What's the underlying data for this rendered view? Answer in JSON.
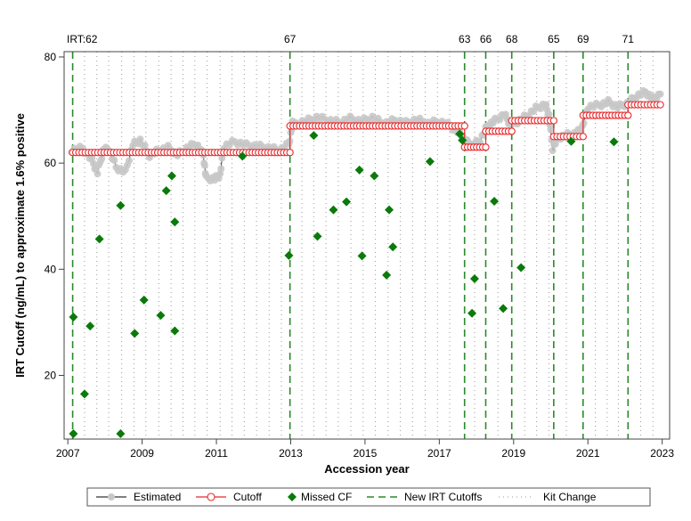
{
  "chart_data": {
    "type": "scatter",
    "xlabel": "Accession year",
    "ylabel": "IRT Cutoff (ng/mL) to approximate 1.6% positive",
    "xlim": [
      2006.9,
      2023.2
    ],
    "ylim": [
      8,
      81
    ],
    "x_ticks": [
      2007,
      2009,
      2011,
      2013,
      2015,
      2017,
      2019,
      2021,
      2023
    ],
    "y_ticks": [
      20,
      40,
      60,
      80
    ],
    "colors": {
      "estimated_line": "#000000",
      "estimated_marker": "#c8c8c8",
      "cutoff": "#e8282b",
      "missed": "#0a7a0a",
      "new_cutoff_line": "#2a8a2a",
      "kit_change": "#9a9a9a"
    },
    "new_irt_cutoffs": [
      {
        "x": 2007.13,
        "label": "IRT:62"
      },
      {
        "x": 2012.98,
        "label": "67"
      },
      {
        "x": 2017.68,
        "label": "63"
      },
      {
        "x": 2018.25,
        "label": "66"
      },
      {
        "x": 2018.95,
        "label": "68"
      },
      {
        "x": 2020.08,
        "label": "65"
      },
      {
        "x": 2020.87,
        "label": "69"
      },
      {
        "x": 2022.08,
        "label": "71"
      }
    ],
    "kit_changes": [
      2007.45,
      2007.78,
      2008.1,
      2008.45,
      2008.78,
      2009.1,
      2009.45,
      2009.78,
      2010.1,
      2010.42,
      2010.75,
      2011.1,
      2011.42,
      2011.75,
      2012.08,
      2012.42,
      2012.75,
      2013.3,
      2013.62,
      2013.95,
      2014.28,
      2014.62,
      2014.95,
      2015.28,
      2015.62,
      2015.95,
      2016.28,
      2016.62,
      2016.95,
      2017.28,
      2017.95,
      2018.58,
      2019.3,
      2019.62,
      2019.95,
      2020.42,
      2021.2,
      2021.52,
      2021.82,
      2022.42,
      2022.75
    ],
    "cutoff_segments": [
      {
        "x0": 2007.13,
        "x1": 2012.98,
        "y": 62
      },
      {
        "x0": 2012.98,
        "x1": 2017.68,
        "y": 67
      },
      {
        "x0": 2017.68,
        "x1": 2018.25,
        "y": 63
      },
      {
        "x0": 2018.25,
        "x1": 2018.95,
        "y": 66
      },
      {
        "x0": 2018.95,
        "x1": 2020.08,
        "y": 68
      },
      {
        "x0": 2020.08,
        "x1": 2020.87,
        "y": 65
      },
      {
        "x0": 2020.87,
        "x1": 2022.08,
        "y": 69
      },
      {
        "x0": 2022.08,
        "x1": 2022.95,
        "y": 71
      }
    ],
    "estimated_anchors": [
      [
        2007.1,
        62.5
      ],
      [
        2007.4,
        62.8
      ],
      [
        2007.65,
        60.5
      ],
      [
        2007.8,
        58.2
      ],
      [
        2007.95,
        62.3
      ],
      [
        2008.1,
        62.8
      ],
      [
        2008.3,
        59.2
      ],
      [
        2008.55,
        58.3
      ],
      [
        2008.75,
        63.5
      ],
      [
        2008.95,
        64.3
      ],
      [
        2009.2,
        61.5
      ],
      [
        2009.45,
        62.4
      ],
      [
        2009.7,
        62.9
      ],
      [
        2009.95,
        61.6
      ],
      [
        2010.2,
        62.8
      ],
      [
        2010.45,
        63.7
      ],
      [
        2010.65,
        61.5
      ],
      [
        2010.72,
        57.2
      ],
      [
        2010.95,
        57.0
      ],
      [
        2011.1,
        57.8
      ],
      [
        2011.2,
        63.2
      ],
      [
        2011.5,
        64.0
      ],
      [
        2011.8,
        63.4
      ],
      [
        2012.1,
        63.2
      ],
      [
        2012.4,
        62.9
      ],
      [
        2012.7,
        62.4
      ],
      [
        2012.95,
        63.6
      ],
      [
        2013.05,
        67.5
      ],
      [
        2013.4,
        67.9
      ],
      [
        2013.7,
        68.6
      ],
      [
        2014.0,
        68.1
      ],
      [
        2014.3,
        67.7
      ],
      [
        2014.6,
        68.4
      ],
      [
        2014.9,
        67.9
      ],
      [
        2015.2,
        68.6
      ],
      [
        2015.5,
        67.4
      ],
      [
        2015.8,
        68.1
      ],
      [
        2016.1,
        67.6
      ],
      [
        2016.4,
        68.2
      ],
      [
        2016.7,
        67.5
      ],
      [
        2017.0,
        67.9
      ],
      [
        2017.3,
        67.0
      ],
      [
        2017.55,
        65.6
      ],
      [
        2017.7,
        64.1
      ],
      [
        2017.9,
        63.4
      ],
      [
        2018.1,
        64.3
      ],
      [
        2018.3,
        67.1
      ],
      [
        2018.5,
        68.0
      ],
      [
        2018.75,
        69.2
      ],
      [
        2018.9,
        67.4
      ],
      [
        2019.1,
        67.8
      ],
      [
        2019.35,
        68.9
      ],
      [
        2019.6,
        70.3
      ],
      [
        2019.85,
        71.1
      ],
      [
        2019.95,
        69.0
      ],
      [
        2020.05,
        62.8
      ],
      [
        2020.2,
        64.8
      ],
      [
        2020.45,
        65.3
      ],
      [
        2020.7,
        65.6
      ],
      [
        2020.85,
        66.8
      ],
      [
        2021.0,
        70.6
      ],
      [
        2021.3,
        70.9
      ],
      [
        2021.55,
        71.5
      ],
      [
        2021.8,
        70.6
      ],
      [
        2022.05,
        71.2
      ],
      [
        2022.3,
        72.6
      ],
      [
        2022.55,
        73.4
      ],
      [
        2022.75,
        72.1
      ],
      [
        2022.95,
        73.0
      ]
    ],
    "missed_cf": [
      [
        2007.15,
        31
      ],
      [
        2007.15,
        9
      ],
      [
        2007.45,
        16.5
      ],
      [
        2007.6,
        29.3
      ],
      [
        2007.85,
        45.7
      ],
      [
        2008.42,
        52
      ],
      [
        2008.42,
        9
      ],
      [
        2008.8,
        27.9
      ],
      [
        2009.05,
        34.2
      ],
      [
        2009.5,
        31.3
      ],
      [
        2009.65,
        54.8
      ],
      [
        2009.8,
        57.6
      ],
      [
        2009.88,
        28.4
      ],
      [
        2009.88,
        48.9
      ],
      [
        2011.7,
        61.3
      ],
      [
        2012.95,
        42.6
      ],
      [
        2013.62,
        65.2
      ],
      [
        2013.72,
        46.2
      ],
      [
        2014.15,
        51.2
      ],
      [
        2014.5,
        52.7
      ],
      [
        2014.85,
        58.7
      ],
      [
        2014.92,
        42.5
      ],
      [
        2015.25,
        57.6
      ],
      [
        2015.58,
        38.9
      ],
      [
        2015.65,
        51.2
      ],
      [
        2015.75,
        44.2
      ],
      [
        2016.75,
        60.3
      ],
      [
        2017.55,
        65.5
      ],
      [
        2017.62,
        64.3
      ],
      [
        2017.88,
        31.7
      ],
      [
        2017.95,
        38.2
      ],
      [
        2018.48,
        52.8
      ],
      [
        2018.72,
        32.6
      ],
      [
        2019.2,
        40.3
      ],
      [
        2020.55,
        64.1
      ],
      [
        2021.7,
        64.0
      ]
    ],
    "legend": [
      {
        "key": "estimated",
        "label": "Estimated"
      },
      {
        "key": "cutoff",
        "label": "Cutoff"
      },
      {
        "key": "missed",
        "label": "Missed CF"
      },
      {
        "key": "new",
        "label": "New IRT Cutoffs"
      },
      {
        "key": "kit",
        "label": "Kit Change"
      }
    ]
  }
}
